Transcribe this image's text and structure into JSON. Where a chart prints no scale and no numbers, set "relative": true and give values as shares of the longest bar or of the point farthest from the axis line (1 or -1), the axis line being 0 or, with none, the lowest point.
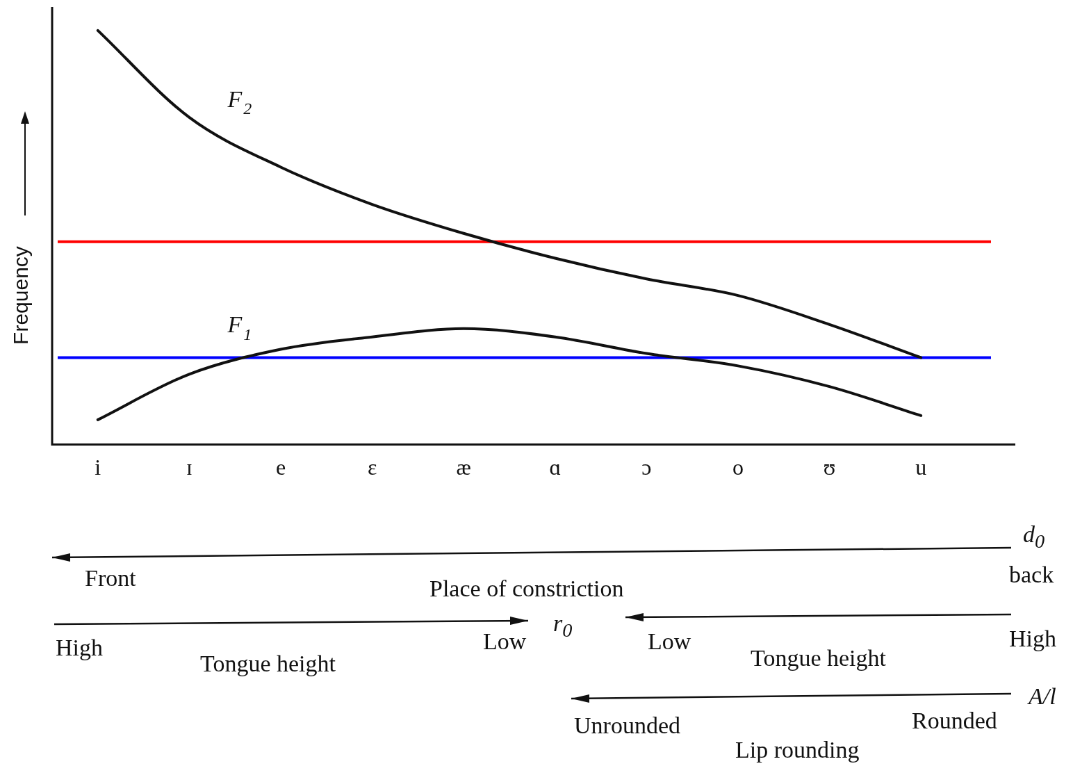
{
  "chart_data": {
    "type": "line",
    "relative": true,
    "ylabel": "Frequency",
    "categories": [
      "i",
      "ɪ",
      "e",
      "ɛ",
      "æ",
      "ɑ",
      "ɔ",
      "o",
      "ʊ",
      "u"
    ],
    "series": [
      {
        "name": "F$_{2}$",
        "color": "#111111",
        "values": [
          1,
          0.79,
          0.67,
          0.58,
          0.51,
          0.45,
          0.4,
          0.36,
          0.29,
          0.21
        ]
      },
      {
        "name": "F$_{1}$",
        "color": "#111111",
        "values": [
          0.06,
          0.17,
          0.23,
          0.26,
          0.28,
          0.26,
          0.22,
          0.19,
          0.14,
          0.07
        ]
      }
    ],
    "ref_lines": [
      {
        "axis": "y",
        "value": 0.49,
        "color": "#ff0000"
      },
      {
        "axis": "y",
        "value": 0.21,
        "color": "#0000ff"
      }
    ],
    "marker": "none",
    "grid": false,
    "legend": false,
    "annotations": [
      "d$_{0}$",
      "Front",
      "Place of constriction",
      "back",
      "r$_{0}$",
      "High",
      "Tongue height",
      "Low",
      "Low",
      "Tongue height",
      "High",
      "A/l",
      "Unrounded",
      "Lip rounding",
      "Rounded"
    ]
  }
}
